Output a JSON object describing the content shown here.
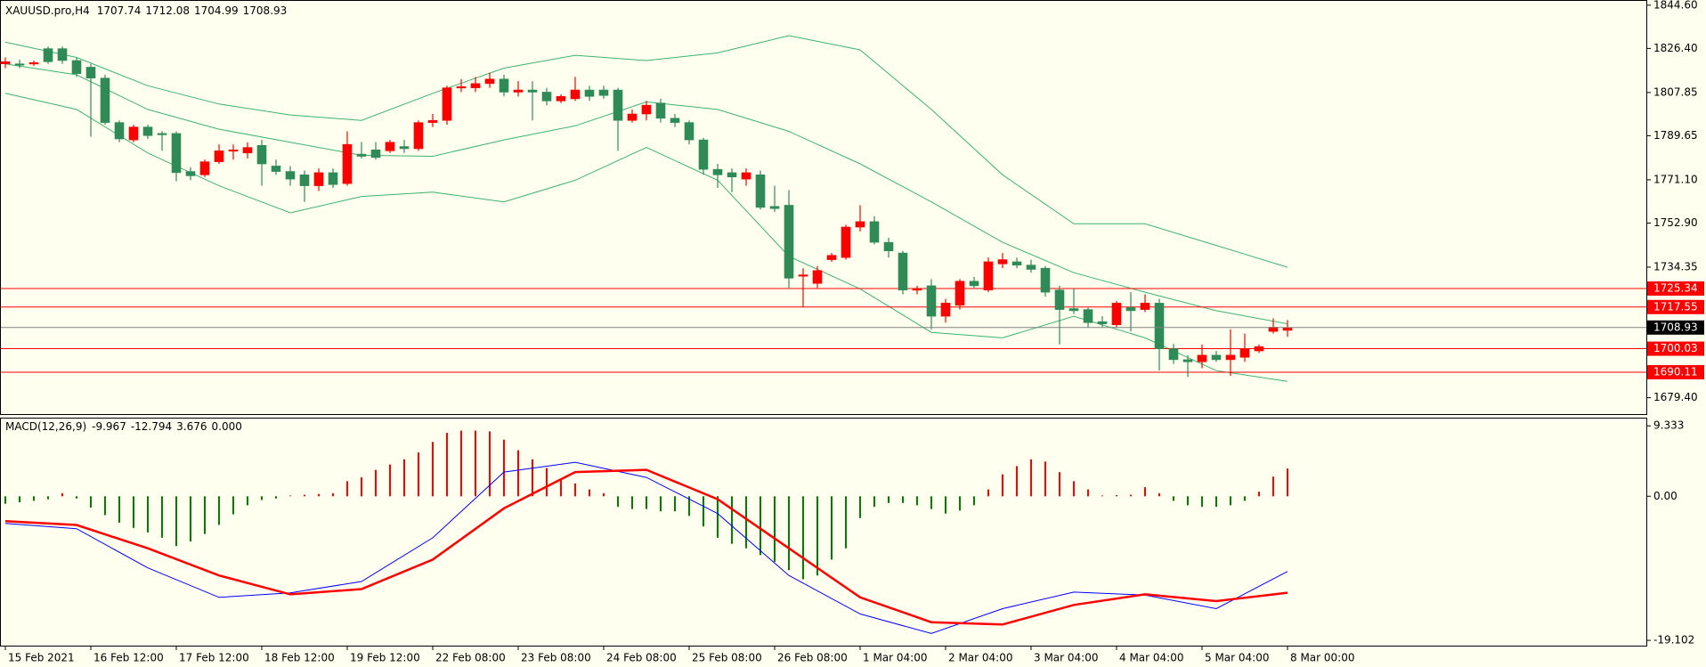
{
  "chart_data": [
    {
      "type": "candlestick",
      "title": "XAUUSD.pro,H4",
      "categories": [
        "15 Feb 2021",
        null,
        null,
        null,
        null,
        null,
        "16 Feb 12:00",
        null,
        null,
        null,
        null,
        null,
        "17 Feb 12:00",
        null,
        null,
        null,
        null,
        null,
        "18 Feb 12:00",
        null,
        null,
        null,
        null,
        null,
        "19 Feb 12:00",
        null,
        null,
        null,
        null,
        null,
        "22 Feb 08:00",
        null,
        null,
        null,
        null,
        null,
        "23 Feb 08:00",
        null,
        null,
        null,
        null,
        null,
        "24 Feb 08:00",
        null,
        null,
        null,
        null,
        null,
        "25 Feb 08:00",
        null,
        null,
        null,
        null,
        null,
        "26 Feb 08:00",
        null,
        null,
        null,
        null,
        null,
        "1 Mar 04:00",
        null,
        null,
        null,
        null,
        null,
        "2 Mar 04:00",
        null,
        null,
        null,
        null,
        null,
        "3 Mar 04:00",
        null,
        null,
        null,
        null,
        null,
        "4 Mar 04:00",
        null,
        null,
        null,
        null,
        null,
        "5 Mar 04:00",
        null,
        null,
        null,
        null,
        null,
        "8 Mar 00:00"
      ],
      "open": [
        1819.9,
        1819.9,
        1819.9,
        1826.3,
        1826.3,
        1821.3,
        1818.5,
        1813.9,
        1795.2,
        1787.9,
        1793.3,
        1790.6,
        1790.6,
        1774.6,
        1773.2,
        1778.7,
        1783.3,
        1782.4,
        1785.6,
        1776.9,
        1774.6,
        1773.2,
        1768.6,
        1774.1,
        1769.5,
        1781.9,
        1783.7,
        1783.3,
        1785.1,
        1784.2,
        1795.2,
        1796.1,
        1809.8,
        1809.8,
        1811.6,
        1813.5,
        1808.0,
        1808.9,
        1808.0,
        1804.3,
        1805.2,
        1808.9,
        1808.9,
        1808.9,
        1796.1,
        1798.8,
        1803.4,
        1797.0,
        1795.2,
        1787.9,
        1775.5,
        1774.1,
        1771.4,
        1773.2,
        1759.9,
        1760.4,
        1730.6,
        1727.5,
        1737.5,
        1738.4,
        1751.2,
        1753.5,
        1744.8,
        1740.3,
        1724.7,
        1726.5,
        1713.7,
        1718.3,
        1728.4,
        1724.7,
        1735.7,
        1736.6,
        1735.2,
        1733.9,
        1724.7,
        1716.9,
        1716.5,
        1711.4,
        1710.1,
        1717.4,
        1716.5,
        1719.2,
        1700.0,
        1695.4,
        1694.5,
        1697.3,
        1695.4,
        1696.4,
        1699.1,
        1707.3,
        1707.74
      ],
      "high": [
        1822.6,
        1821.7,
        1821.3,
        1827.2,
        1827.2,
        1822.6,
        1819.9,
        1815.3,
        1796.1,
        1794.3,
        1794.3,
        1791.5,
        1791.5,
        1776.4,
        1779.6,
        1786.0,
        1786.0,
        1786.9,
        1787.9,
        1779.6,
        1776.9,
        1775.0,
        1775.9,
        1775.9,
        1791.5,
        1787.0,
        1787.0,
        1787.9,
        1787.9,
        1796.1,
        1798.8,
        1810.7,
        1813.5,
        1814.4,
        1816.2,
        1815.3,
        1812.6,
        1812.6,
        1809.8,
        1807.1,
        1814.4,
        1810.7,
        1810.7,
        1809.8,
        1800.7,
        1804.3,
        1805.2,
        1798.8,
        1796.1,
        1788.8,
        1777.8,
        1775.9,
        1775.9,
        1775.0,
        1768.6,
        1766.8,
        1733.9,
        1734.8,
        1740.3,
        1752.2,
        1760.4,
        1755.8,
        1746.7,
        1741.2,
        1726.5,
        1729.3,
        1721.0,
        1729.3,
        1730.2,
        1738.4,
        1740.3,
        1738.4,
        1737.5,
        1734.8,
        1726.5,
        1725.6,
        1717.4,
        1713.7,
        1720.1,
        1723.8,
        1722.9,
        1721.0,
        1702.0,
        1697.3,
        1701.8,
        1699.1,
        1708.2,
        1706.4,
        1701.8,
        1712.8,
        1712.08
      ],
      "low": [
        1818.1,
        1818.1,
        1819.0,
        1819.9,
        1819.9,
        1814.4,
        1789.2,
        1794.3,
        1786.9,
        1786.9,
        1788.3,
        1783.3,
        1770.5,
        1770.9,
        1772.3,
        1777.8,
        1779.6,
        1780.1,
        1768.6,
        1773.2,
        1768.6,
        1761.8,
        1766.4,
        1767.7,
        1768.6,
        1780.1,
        1779.6,
        1782.4,
        1782.4,
        1783.3,
        1793.3,
        1794.3,
        1808.0,
        1808.0,
        1809.8,
        1806.2,
        1806.2,
        1796.1,
        1802.5,
        1803.4,
        1804.3,
        1804.3,
        1805.2,
        1783.3,
        1795.2,
        1796.1,
        1795.2,
        1793.3,
        1786.0,
        1773.2,
        1767.7,
        1765.9,
        1768.6,
        1758.6,
        1757.6,
        1725.2,
        1717.4,
        1725.6,
        1736.6,
        1737.5,
        1749.4,
        1743.9,
        1738.4,
        1722.9,
        1722.9,
        1708.2,
        1711.0,
        1716.5,
        1725.6,
        1723.8,
        1733.9,
        1733.9,
        1732.0,
        1721.9,
        1701.8,
        1714.6,
        1709.1,
        1709.1,
        1709.1,
        1707.3,
        1715.5,
        1690.8,
        1693.6,
        1688.1,
        1691.8,
        1694.5,
        1688.6,
        1694.5,
        1698.2,
        1706.4,
        1704.99
      ],
      "close": [
        1820.8,
        1819.4,
        1820.4,
        1820.8,
        1821.3,
        1815.8,
        1813.9,
        1795.2,
        1788.3,
        1793.3,
        1789.7,
        1790.1,
        1774.1,
        1772.8,
        1778.7,
        1783.3,
        1783.7,
        1784.7,
        1777.8,
        1774.6,
        1771.4,
        1768.6,
        1774.1,
        1769.1,
        1786.0,
        1781.0,
        1780.5,
        1786.9,
        1784.2,
        1795.2,
        1796.1,
        1809.8,
        1810.3,
        1811.6,
        1813.5,
        1808.0,
        1808.9,
        1808.0,
        1804.3,
        1806.2,
        1808.9,
        1806.2,
        1806.6,
        1796.1,
        1798.8,
        1802.5,
        1797.0,
        1795.2,
        1787.9,
        1775.5,
        1773.2,
        1772.3,
        1774.1,
        1759.5,
        1759.0,
        1729.7,
        1731.1,
        1732.9,
        1739.3,
        1751.2,
        1753.5,
        1744.8,
        1741.2,
        1724.7,
        1725.2,
        1713.7,
        1719.2,
        1728.4,
        1726.5,
        1736.6,
        1737.5,
        1735.2,
        1733.4,
        1723.8,
        1716.5,
        1716.0,
        1711.0,
        1710.5,
        1719.2,
        1716.0,
        1719.2,
        1700.0,
        1695.4,
        1694.5,
        1697.3,
        1695.4,
        1697.3,
        1700.0,
        1700.9,
        1709.1,
        1708.93
      ],
      "up_color": "#ff0000",
      "down_color": "#2e8b57",
      "ylim": [
        1672.5,
        1846.4
      ],
      "yticks": [
        {
          "value": 1844.6,
          "label": "1844.60"
        },
        {
          "value": 1826.4,
          "label": "1826.40"
        },
        1807.85,
        1789.65,
        {
          "value": 1771.1,
          "label": "1771.10"
        },
        {
          "value": 1752.9,
          "label": "1752.90"
        },
        1734.35,
        {
          "value": 1679.4,
          "label": "1679.40"
        }
      ],
      "series": [
        {
          "color": "#3cb371",
          "x": [
            0,
            5,
            10,
            15,
            20,
            25,
            30,
            35,
            40,
            45,
            50,
            55,
            60,
            65,
            70,
            75,
            80,
            85,
            90
          ],
          "values": [
            1829.0,
            1822.6,
            1810.7,
            1803.0,
            1798.4,
            1796.1,
            1807.5,
            1818.1,
            1823.5,
            1821.3,
            1824.5,
            1831.8,
            1825.8,
            1800.7,
            1773.2,
            1752.6,
            1752.6,
            1743.5,
            1734.3
          ]
        },
        {
          "color": "#3cb371",
          "x": [
            0,
            5,
            10,
            15,
            20,
            25,
            30,
            35,
            40,
            45,
            50,
            55,
            60,
            65,
            70,
            75,
            80,
            85,
            90
          ],
          "values": [
            1819.9,
            1815.3,
            1800.7,
            1792.4,
            1786.9,
            1781.4,
            1781.0,
            1787.9,
            1793.8,
            1803.9,
            1800.7,
            1791.5,
            1777.8,
            1761.8,
            1744.8,
            1732.0,
            1723.8,
            1716.0,
            1710.5
          ]
        },
        {
          "color": "#3cb371",
          "x": [
            0,
            5,
            10,
            15,
            20,
            25,
            30,
            35,
            40,
            45,
            50,
            55,
            60,
            65,
            70,
            75,
            80,
            85,
            90
          ],
          "values": [
            1807.5,
            1800.7,
            1782.4,
            1768.6,
            1757.2,
            1764.1,
            1765.9,
            1761.8,
            1770.9,
            1784.7,
            1770.9,
            1738.9,
            1725.2,
            1706.9,
            1704.6,
            1713.7,
            1704.6,
            1690.8,
            1686.3
          ]
        }
      ],
      "levels": [
        1725.34,
        1717.55,
        1700.03,
        1690.11
      ],
      "level_color": "#ff0000",
      "price_line_color": "#808080"
    },
    {
      "type": "macd",
      "title": "MACD(12,26,9)",
      "values": [
        -1.0,
        -0.8,
        -0.6,
        -0.4,
        0.4,
        -0.3,
        -1.5,
        -2.5,
        -3.5,
        -4.2,
        -4.8,
        -5.5,
        -6.6,
        -6.0,
        -5.0,
        -3.8,
        -2.4,
        -1.2,
        -0.5,
        -0.3,
        0.1,
        0.2,
        0.3,
        0.4,
        2.0,
        2.5,
        3.5,
        4.2,
        4.9,
        5.8,
        7.2,
        8.4,
        8.7,
        8.7,
        8.6,
        7.5,
        6.1,
        4.9,
        3.75,
        2.3,
        1.7,
        0.9,
        0.4,
        -1.4,
        -1.7,
        -1.7,
        -2.0,
        -2.0,
        -2.6,
        -4.0,
        -5.5,
        -6.3,
        -6.9,
        -7.8,
        -8.7,
        -9.8,
        -11.0,
        -10.5,
        -8.4,
        -6.9,
        -2.9,
        -1.4,
        -0.9,
        -0.9,
        -1.2,
        -1.7,
        -2.3,
        -1.9,
        -1.2,
        0.9,
        2.9,
        4.0,
        4.9,
        4.6,
        3.2,
        2.0,
        0.9,
        0.1,
        0.15,
        0.2,
        1.2,
        0.4,
        -0.6,
        -1.2,
        -1.4,
        -1.4,
        -1.2,
        -0.6,
        0.6,
        2.6,
        3.676
      ],
      "positive_color": "#ff0000",
      "negative_color": "#008000",
      "series": [
        {
          "color": "#0000ff",
          "line_width": 1,
          "x": [
            0,
            5,
            10,
            15,
            20,
            25,
            30,
            35,
            40,
            45,
            50,
            55,
            60,
            65,
            70,
            75,
            80,
            85,
            90
          ],
          "values": [
            -3.6,
            -4.3,
            -9.5,
            -13.4,
            -12.8,
            -11.3,
            -5.5,
            3.2,
            4.5,
            2.5,
            -2.3,
            -10.5,
            -15.6,
            -18.2,
            -14.9,
            -12.7,
            -13.1,
            -14.9,
            -9.967
          ]
        },
        {
          "color": "#ff0000",
          "line_width": 2.5,
          "x": [
            0,
            5,
            10,
            15,
            20,
            25,
            30,
            35,
            40,
            45,
            50,
            55,
            60,
            65,
            70,
            75,
            80,
            85,
            90
          ],
          "values": [
            -3.3,
            -3.8,
            -6.9,
            -10.5,
            -13.0,
            -12.3,
            -8.4,
            -1.6,
            3.2,
            3.5,
            -0.4,
            -6.9,
            -13.4,
            -16.7,
            -17.0,
            -14.4,
            -13.0,
            -13.9,
            -12.794
          ]
        }
      ],
      "extra_value": {
        "value": 0,
        "label": "0.000"
      },
      "ylim": [
        -19.8,
        10.3
      ],
      "yticks": [
        9.333,
        {
          "value": 0,
          "label": "0.00"
        },
        -19.102
      ]
    }
  ]
}
